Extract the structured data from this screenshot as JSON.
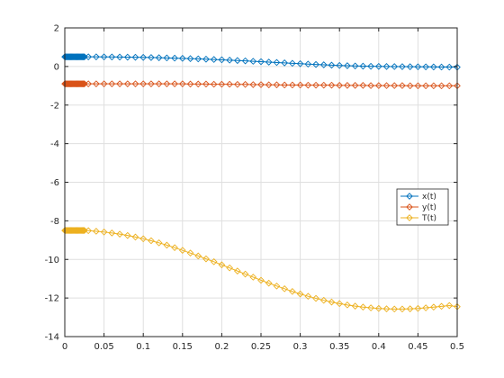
{
  "chart_data": {
    "type": "line",
    "title": "",
    "xlabel": "",
    "ylabel": "",
    "xlim": [
      0,
      0.5
    ],
    "ylim": [
      -14,
      2
    ],
    "xticks": [
      0,
      0.05,
      0.1,
      0.15,
      0.2,
      0.25,
      0.3,
      0.35,
      0.4,
      0.45,
      0.5
    ],
    "xtick_labels": [
      "0",
      "0.05",
      "0.1",
      "0.15",
      "0.2",
      "0.25",
      "0.3",
      "0.35",
      "0.4",
      "0.45",
      "0.5"
    ],
    "yticks": [
      -14,
      -12,
      -10,
      -8,
      -6,
      -4,
      -2,
      0,
      2
    ],
    "ytick_labels": [
      "-14",
      "-12",
      "-10",
      "-8",
      "-6",
      "-4",
      "-2",
      "0",
      "2"
    ],
    "grid": true,
    "legend_location": "right, below middle",
    "x": [
      0,
      0.001,
      0.002,
      0.003,
      0.004,
      0.005,
      0.006,
      0.007,
      0.008,
      0.009,
      0.01,
      0.011,
      0.012,
      0.013,
      0.014,
      0.015,
      0.016,
      0.017,
      0.018,
      0.019,
      0.02,
      0.021,
      0.022,
      0.023,
      0.024,
      0.025,
      0.03,
      0.04,
      0.05,
      0.06,
      0.07,
      0.08,
      0.09,
      0.1,
      0.11,
      0.12,
      0.13,
      0.14,
      0.15,
      0.16,
      0.17,
      0.18,
      0.19,
      0.2,
      0.21,
      0.22,
      0.23,
      0.24,
      0.25,
      0.26,
      0.27,
      0.28,
      0.29,
      0.3,
      0.31,
      0.32,
      0.33,
      0.34,
      0.35,
      0.36,
      0.37,
      0.38,
      0.39,
      0.4,
      0.41,
      0.42,
      0.43,
      0.44,
      0.45,
      0.46,
      0.47,
      0.48,
      0.49,
      0.5
    ],
    "series": [
      {
        "name": "x(t)",
        "color": "#0072BD",
        "marker": "diamond",
        "values": [
          0.5,
          0.5,
          0.5,
          0.5,
          0.5,
          0.5,
          0.5,
          0.5,
          0.5,
          0.5,
          0.5,
          0.5,
          0.5,
          0.5,
          0.5,
          0.5,
          0.5,
          0.5,
          0.5,
          0.5,
          0.5,
          0.5,
          0.5,
          0.5,
          0.5,
          0.5,
          0.5,
          0.499,
          0.497,
          0.494,
          0.49,
          0.485,
          0.479,
          0.472,
          0.464,
          0.455,
          0.445,
          0.434,
          0.422,
          0.409,
          0.395,
          0.38,
          0.364,
          0.347,
          0.329,
          0.31,
          0.29,
          0.27,
          0.249,
          0.228,
          0.207,
          0.186,
          0.165,
          0.144,
          0.124,
          0.105,
          0.087,
          0.07,
          0.054,
          0.04,
          0.028,
          0.018,
          0.01,
          0.004,
          0,
          -0.004,
          -0.008,
          -0.012,
          -0.016,
          -0.02,
          -0.024,
          -0.028,
          -0.032,
          -0.036
        ]
      },
      {
        "name": "y(t)",
        "color": "#D95319",
        "marker": "diamond",
        "values": [
          -0.9,
          -0.9,
          -0.9,
          -0.9,
          -0.9,
          -0.9,
          -0.9,
          -0.9,
          -0.9,
          -0.9,
          -0.9,
          -0.9,
          -0.9,
          -0.9,
          -0.9,
          -0.9,
          -0.9,
          -0.9,
          -0.9,
          -0.9,
          -0.9,
          -0.9,
          -0.9,
          -0.9,
          -0.9,
          -0.9,
          -0.9,
          -0.9,
          -0.9,
          -0.9,
          -0.9,
          -0.9,
          -0.9,
          -0.9,
          -0.9,
          -0.9,
          -0.9,
          -0.9,
          -0.9,
          -0.91,
          -0.91,
          -0.91,
          -0.92,
          -0.92,
          -0.92,
          -0.93,
          -0.93,
          -0.94,
          -0.94,
          -0.95,
          -0.95,
          -0.96,
          -0.96,
          -0.96,
          -0.97,
          -0.97,
          -0.97,
          -0.97,
          -0.98,
          -0.98,
          -0.98,
          -0.98,
          -0.99,
          -0.99,
          -0.99,
          -0.99,
          -0.99,
          -1.0,
          -1.0,
          -1.0,
          -1.0,
          -1.0,
          -1.0,
          -1.0
        ]
      },
      {
        "name": "T(t)",
        "color": "#EDB120",
        "marker": "diamond",
        "values": [
          -8.5,
          -8.5,
          -8.5,
          -8.5,
          -8.5,
          -8.5,
          -8.5,
          -8.5,
          -8.5,
          -8.5,
          -8.5,
          -8.5,
          -8.5,
          -8.5,
          -8.5,
          -8.5,
          -8.5,
          -8.5,
          -8.5,
          -8.5,
          -8.5,
          -8.5,
          -8.5,
          -8.5,
          -8.5,
          -8.5,
          -8.51,
          -8.54,
          -8.58,
          -8.63,
          -8.69,
          -8.76,
          -8.84,
          -8.93,
          -9.03,
          -9.14,
          -9.26,
          -9.39,
          -9.53,
          -9.67,
          -9.82,
          -9.97,
          -10.12,
          -10.28,
          -10.44,
          -10.6,
          -10.76,
          -10.92,
          -11.08,
          -11.23,
          -11.38,
          -11.52,
          -11.66,
          -11.79,
          -11.91,
          -12.02,
          -12.12,
          -12.21,
          -12.29,
          -12.36,
          -12.42,
          -12.47,
          -12.51,
          -12.54,
          -12.56,
          -12.57,
          -12.57,
          -12.56,
          -12.54,
          -12.51,
          -12.47,
          -12.43,
          -12.39,
          -12.45
        ]
      }
    ]
  }
}
